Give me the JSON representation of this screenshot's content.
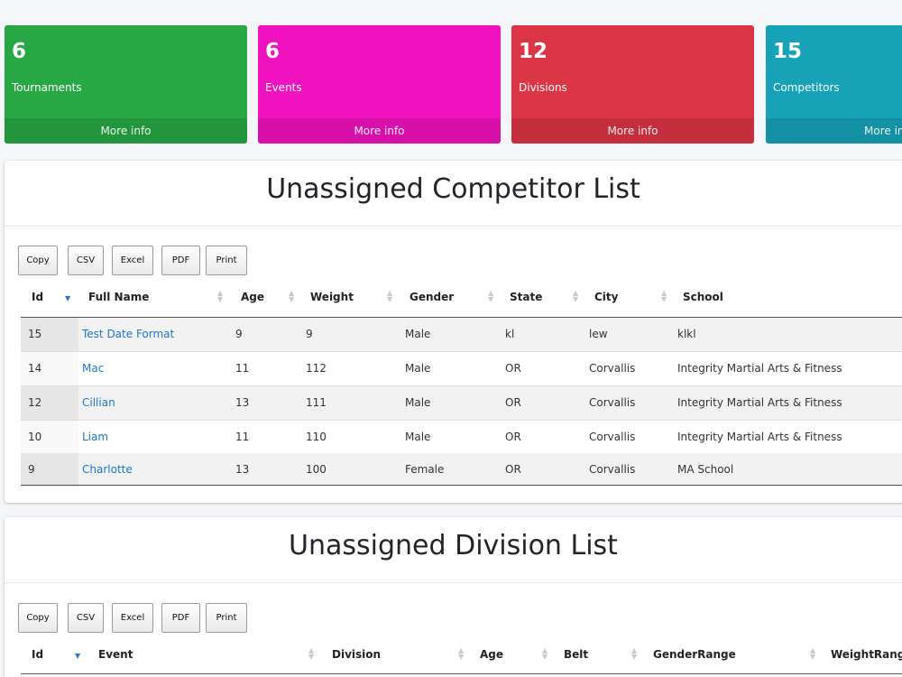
{
  "stats": [
    {
      "value": "6",
      "label": "Tournaments",
      "footer": "More info",
      "color": "#28a745"
    },
    {
      "value": "6",
      "label": "Events",
      "footer": "More info",
      "color": "#f012be"
    },
    {
      "value": "12",
      "label": "Divisions",
      "footer": "More info",
      "color": "#dc3545"
    },
    {
      "value": "15",
      "label": "Competitors",
      "footer": "More info",
      "color": "#17a2b8"
    }
  ],
  "competitor_card": {
    "title": "Unassigned Competitor List",
    "buttons": {
      "copy": "Copy",
      "csv": "CSV",
      "excel": "Excel",
      "pdf": "PDF",
      "print": "Print"
    },
    "columns": {
      "id": "Id",
      "full_name": "Full Name",
      "age": "Age",
      "weight": "Weight",
      "gender": "Gender",
      "state": "State",
      "city": "City",
      "school": "School"
    },
    "rows": [
      {
        "id": "15",
        "full_name": "Test Date Format",
        "age": "9",
        "weight": "9",
        "gender": "Male",
        "state": "kl",
        "city": "lew",
        "school": "klkl"
      },
      {
        "id": "14",
        "full_name": "Mac",
        "age": "11",
        "weight": "112",
        "gender": "Male",
        "state": "OR",
        "city": "Corvallis",
        "school": "Integrity Martial Arts & Fitness"
      },
      {
        "id": "12",
        "full_name": "Cillian",
        "age": "13",
        "weight": "111",
        "gender": "Male",
        "state": "OR",
        "city": "Corvallis",
        "school": "Integrity Martial Arts & Fitness"
      },
      {
        "id": "10",
        "full_name": "Liam",
        "age": "11",
        "weight": "110",
        "gender": "Male",
        "state": "OR",
        "city": "Corvallis",
        "school": "Integrity Martial Arts & Fitness"
      },
      {
        "id": "9",
        "full_name": "Charlotte",
        "age": "13",
        "weight": "100",
        "gender": "Female",
        "state": "OR",
        "city": "Corvallis",
        "school": "MA School"
      }
    ]
  },
  "division_card": {
    "title": "Unassigned Division List",
    "buttons": {
      "copy": "Copy",
      "csv": "CSV",
      "excel": "Excel",
      "pdf": "PDF",
      "print": "Print"
    },
    "columns": {
      "id": "Id",
      "event": "Event",
      "division": "Division",
      "age": "Age",
      "belt": "Belt",
      "gender_range": "GenderRange",
      "weight_range": "WeightRange"
    }
  },
  "icons": {
    "sort_both": "sort-both-icon",
    "sort_asc": "sort-ascending-icon"
  }
}
